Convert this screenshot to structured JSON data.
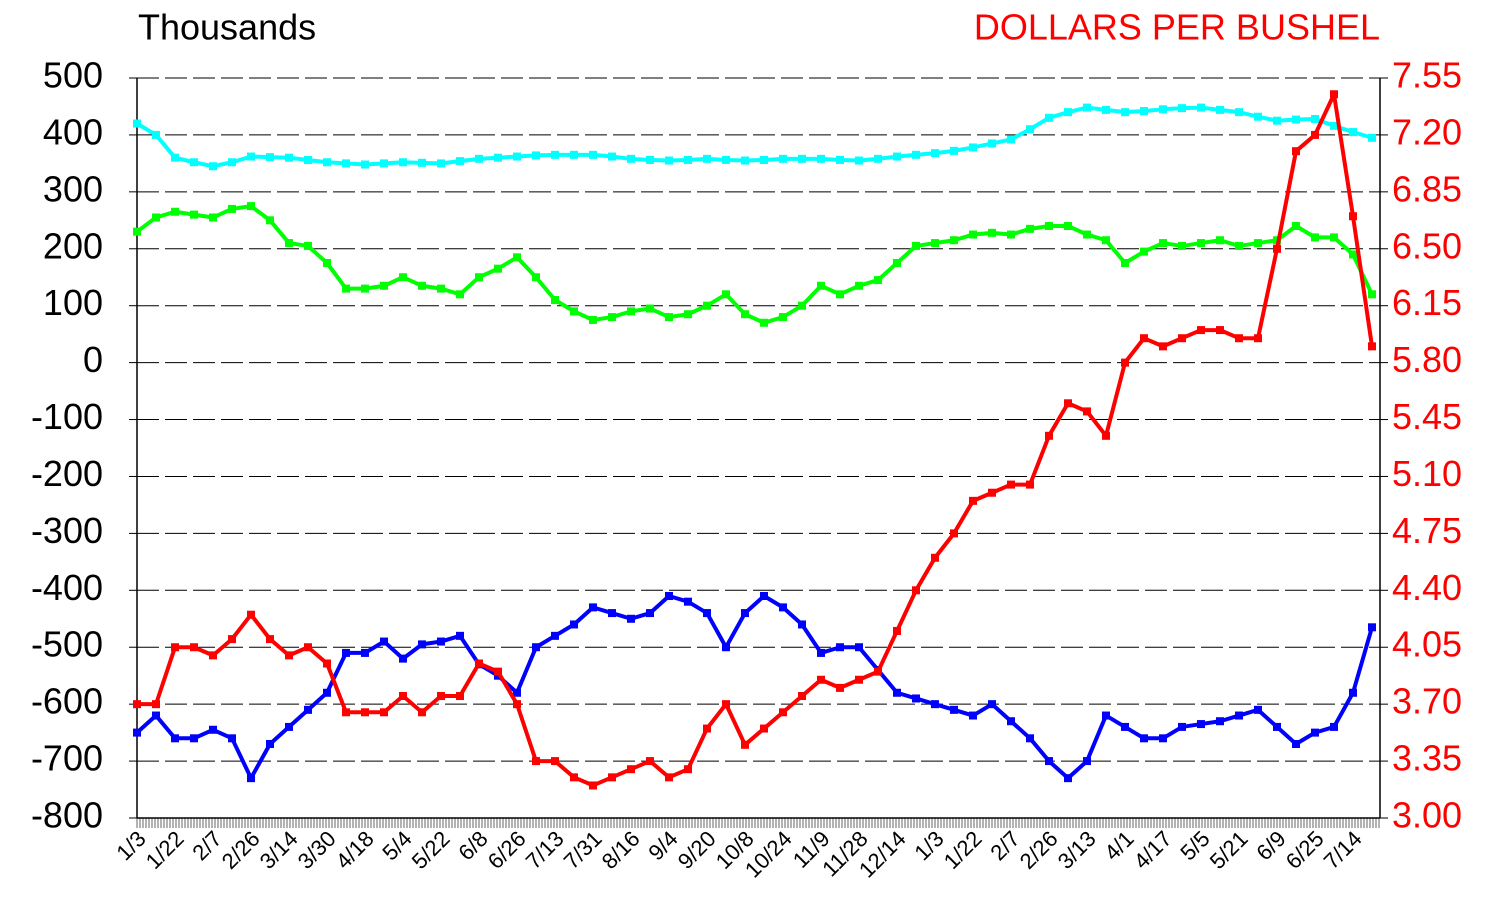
{
  "chart_data": {
    "type": "line",
    "ylabel": "Thousands",
    "y2label": "DOLLARS PER BUSHEL",
    "categories": [
      "1/3",
      null,
      "1/22",
      null,
      "2/7",
      null,
      "2/26",
      null,
      "3/14",
      null,
      "3/30",
      null,
      "4/18",
      null,
      "5/4",
      null,
      "5/22",
      null,
      "6/8",
      null,
      "6/26",
      null,
      "7/13",
      null,
      "7/31",
      null,
      "8/16",
      null,
      "9/4",
      null,
      "9/20",
      null,
      "10/8",
      null,
      "10/24",
      null,
      "11/9",
      null,
      "11/28",
      null,
      "12/14",
      null,
      "1/3",
      null,
      "1/22",
      null,
      "2/7",
      null,
      "2/26",
      null,
      "3/13",
      null,
      "4/1",
      null,
      "4/17",
      null,
      "5/5",
      null,
      "5/21",
      null,
      "6/9",
      null,
      "6/25",
      null,
      "7/14",
      null
    ],
    "series": [
      {
        "color": "#00ffff",
        "values": [
          420,
          400,
          360,
          352,
          345,
          352,
          362,
          361,
          360,
          356,
          352,
          350,
          348,
          350,
          352,
          351,
          350,
          354,
          358,
          360,
          362,
          364,
          365,
          365,
          365,
          362,
          358,
          356,
          355,
          356,
          358,
          356,
          355,
          356,
          358,
          358,
          358,
          356,
          355,
          358,
          362,
          365,
          368,
          372,
          378,
          385,
          392,
          410,
          430,
          440,
          448,
          444,
          440,
          442,
          445,
          447,
          448,
          444,
          440,
          432,
          425,
          427,
          428,
          416,
          405,
          395
        ]
      },
      {
        "color": "#00ff00",
        "values": [
          230,
          255,
          265,
          260,
          255,
          270,
          275,
          250,
          210,
          205,
          175,
          130,
          130,
          135,
          150,
          135,
          130,
          120,
          150,
          165,
          185,
          150,
          110,
          90,
          75,
          80,
          90,
          95,
          80,
          85,
          100,
          120,
          85,
          70,
          80,
          100,
          135,
          120,
          135,
          145,
          175,
          205,
          210,
          215,
          225,
          228,
          225,
          235,
          240,
          240,
          225,
          215,
          175,
          195,
          210,
          205,
          210,
          215,
          205,
          210,
          215,
          240,
          220,
          220,
          190,
          120
        ]
      },
      {
        "color": "#0000ff",
        "values": [
          -650,
          -620,
          -660,
          -660,
          -645,
          -660,
          -730,
          -670,
          -640,
          -610,
          -580,
          -510,
          -510,
          -490,
          -520,
          -495,
          -490,
          -480,
          -530,
          -550,
          -580,
          -500,
          -480,
          -460,
          -430,
          -440,
          -450,
          -440,
          -410,
          -420,
          -440,
          -500,
          -440,
          -410,
          -430,
          -460,
          -510,
          -500,
          -500,
          -540,
          -580,
          -590,
          -600,
          -610,
          -620,
          -600,
          -630,
          -660,
          -700,
          -730,
          -700,
          -620,
          -640,
          -660,
          -660,
          -640,
          -635,
          -630,
          -620,
          -610,
          -640,
          -670,
          -650,
          -640,
          -580,
          -465
        ]
      },
      {
        "color": "#ff0000",
        "axis": "y2",
        "values": [
          3.7,
          3.7,
          4.05,
          4.05,
          4.0,
          4.1,
          4.25,
          4.1,
          4.0,
          4.05,
          3.95,
          3.65,
          3.65,
          3.65,
          3.75,
          3.65,
          3.75,
          3.75,
          3.95,
          3.9,
          3.7,
          3.35,
          3.35,
          3.25,
          3.2,
          3.25,
          3.3,
          3.35,
          3.25,
          3.3,
          3.55,
          3.7,
          3.45,
          3.55,
          3.65,
          3.75,
          3.85,
          3.8,
          3.85,
          3.9,
          4.15,
          4.4,
          4.6,
          4.75,
          4.95,
          5.0,
          5.05,
          5.05,
          5.35,
          5.55,
          5.5,
          5.35,
          5.8,
          5.95,
          5.9,
          5.95,
          6.0,
          6.0,
          5.95,
          5.95,
          6.5,
          7.1,
          7.2,
          7.45,
          6.7,
          5.9
        ]
      }
    ],
    "ylim": [
      -800,
      500
    ],
    "yticks": [
      500,
      400,
      300,
      200,
      100,
      0,
      -100,
      -200,
      -300,
      -400,
      -500,
      -600,
      -700,
      -800
    ],
    "y2lim": [
      3,
      7.55
    ],
    "y2ticks": [
      {
        "value": 7.55,
        "label": "7.55"
      },
      {
        "value": 7.2,
        "label": "7.20"
      },
      {
        "value": 6.85,
        "label": "6.85"
      },
      {
        "value": 6.5,
        "label": "6.50"
      },
      {
        "value": 6.15,
        "label": "6.15"
      },
      {
        "value": 5.8,
        "label": "5.80"
      },
      {
        "value": 5.45,
        "label": "5.45"
      },
      {
        "value": 5.1,
        "label": "5.10"
      },
      {
        "value": 4.75,
        "label": "4.75"
      },
      {
        "value": 4.4,
        "label": "4.40"
      },
      {
        "value": 4.05,
        "label": "4.05"
      },
      {
        "value": 3.7,
        "label": "3.70"
      },
      {
        "value": 3.35,
        "label": "3.35"
      },
      {
        "value": 3,
        "label": "3.00"
      }
    ],
    "y2color": "#ff0000",
    "grid": true
  }
}
